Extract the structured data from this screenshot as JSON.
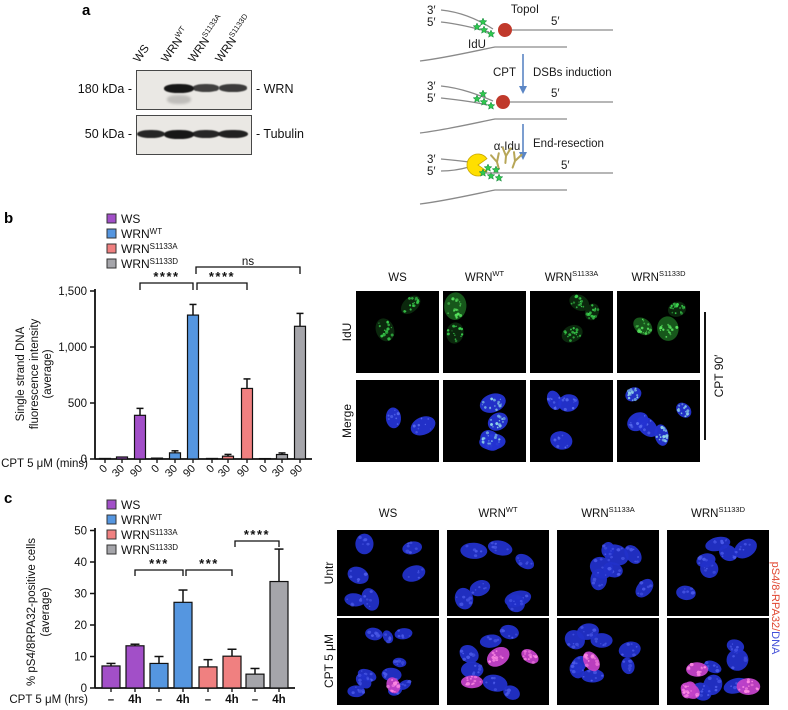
{
  "panels": {
    "a": {
      "label": "a",
      "blot": {
        "lane_labels": [
          {
            "base": "WS",
            "sup": ""
          },
          {
            "base": "WRN",
            "sup": "WT"
          },
          {
            "base": "WRN",
            "sup": "S1133A"
          },
          {
            "base": "WRN",
            "sup": "S1133D"
          }
        ],
        "rows": [
          {
            "marker": "180 kDa -",
            "protein": "- WRN",
            "bands": [
              0,
              1,
              0.6,
              0.65
            ]
          },
          {
            "marker": "50 kDa -",
            "protein": "- Tubulin",
            "bands": [
              0.85,
              1,
              0.85,
              0.9
            ]
          }
        ]
      },
      "schematic": {
        "p3": "3′",
        "p5": "5′",
        "topoI": "TopoI",
        "idu": "IdU",
        "cpt": "CPT",
        "dsbs": "DSBs induction",
        "end_resection": "End-resection",
        "alpha_idu": "α-Idu",
        "colors": {
          "topo": "#c0392b",
          "star": "#2fc84e",
          "pacman": "#ffdf00",
          "antibody": "#b7a657",
          "arrow": "#5b86c5"
        }
      }
    },
    "b": {
      "label": "b",
      "images": {
        "columns": [
          {
            "base": "WS",
            "sup": ""
          },
          {
            "base": "WRN",
            "sup": "WT"
          },
          {
            "base": "WRN",
            "sup": "S1133A"
          },
          {
            "base": "WRN",
            "sup": "S1133D"
          }
        ],
        "rows": [
          {
            "label": "IdU",
            "cells": [
              {
                "seed": 3,
                "scale": 1,
                "nuclei": [
                  {
                    "style": "green",
                    "count": 2
                  }
                ]
              },
              {
                "seed": 7,
                "scale": 1,
                "nuclei": [
                  {
                    "style": "green_bright",
                    "count": 1
                  },
                  {
                    "style": "green",
                    "count": 1
                  }
                ]
              },
              {
                "seed": 11,
                "scale": 0.9,
                "nuclei": [
                  {
                    "style": "green",
                    "count": 3
                  }
                ]
              },
              {
                "seed": 15,
                "scale": 0.95,
                "nuclei": [
                  {
                    "style": "green_bright",
                    "count": 2
                  },
                  {
                    "style": "green",
                    "count": 1
                  }
                ]
              }
            ]
          },
          {
            "label": "Merge",
            "cells": [
              {
                "seed": 21,
                "scale": 1,
                "nuclei": [
                  {
                    "style": "merge_blue",
                    "count": 2
                  }
                ]
              },
              {
                "seed": 25,
                "scale": 0.95,
                "nuclei": [
                  {
                    "style": "merge_cyan",
                    "count": 4
                  }
                ]
              },
              {
                "seed": 29,
                "scale": 0.95,
                "nuclei": [
                  {
                    "style": "merge_blue",
                    "count": 3
                  }
                ]
              },
              {
                "seed": 33,
                "scale": 0.9,
                "nuclei": [
                  {
                    "style": "merge_cyan",
                    "count": 3
                  },
                  {
                    "style": "merge_blue",
                    "count": 2
                  }
                ]
              }
            ]
          }
        ],
        "side_label": "CPT 90′"
      }
    },
    "c": {
      "label": "c",
      "images": {
        "columns": [
          {
            "base": "WS",
            "sup": ""
          },
          {
            "base": "WRN",
            "sup": "WT"
          },
          {
            "base": "WRN",
            "sup": "S1133A"
          },
          {
            "base": "WRN",
            "sup": "S1133D"
          }
        ],
        "rows": [
          {
            "label": "Untr",
            "cells": [
              {
                "seed": 41,
                "scale": 0.8,
                "nuclei": [
                  {
                    "style": "blue",
                    "count": 6
                  }
                ]
              },
              {
                "seed": 45,
                "scale": 0.8,
                "nuclei": [
                  {
                    "style": "blue",
                    "count": 7
                  }
                ]
              },
              {
                "seed": 49,
                "scale": 0.8,
                "nuclei": [
                  {
                    "style": "blue",
                    "count": 7
                  }
                ]
              },
              {
                "seed": 53,
                "scale": 0.85,
                "nuclei": [
                  {
                    "style": "blue",
                    "count": 6
                  }
                ]
              }
            ]
          },
          {
            "label": "CPT 5 μM",
            "cells": [
              {
                "seed": 61,
                "scale": 0.6,
                "nuclei": [
                  {
                    "style": "blue",
                    "count": 10
                  },
                  {
                    "style": "magenta",
                    "count": 1
                  }
                ]
              },
              {
                "seed": 65,
                "scale": 0.75,
                "nuclei": [
                  {
                    "style": "blue",
                    "count": 6
                  },
                  {
                    "style": "magenta",
                    "count": 3
                  }
                ]
              },
              {
                "seed": 69,
                "scale": 0.7,
                "nuclei": [
                  {
                    "style": "blue",
                    "count": 8
                  },
                  {
                    "style": "magenta",
                    "count": 1
                  }
                ]
              },
              {
                "seed": 73,
                "scale": 0.75,
                "nuclei": [
                  {
                    "style": "blue",
                    "count": 6
                  },
                  {
                    "style": "magenta",
                    "count": 4
                  }
                ]
              }
            ]
          }
        ],
        "side_label_parts": [
          {
            "text": "pS4/8-RPA32/",
            "color": "#e0452f"
          },
          {
            "text": "DNA",
            "color": "#4450d8"
          }
        ]
      }
    }
  },
  "chart_data": [
    {
      "id": "panel_b",
      "type": "bar",
      "title": "",
      "ylabel_lines": [
        "Single strand DNA",
        "fluorescence intensity",
        "(average)"
      ],
      "xlabel": "CPT 5 μM (mins)",
      "ylim": [
        0,
        1500
      ],
      "yticks": [
        {
          "v": 0,
          "label": "0"
        },
        {
          "v": 500,
          "label": "500"
        },
        {
          "v": 1000,
          "label": "1,000"
        },
        {
          "v": 1500,
          "label": "1,500"
        }
      ],
      "categories": [
        "0",
        "30",
        "90"
      ],
      "legend": [
        {
          "base": "WS",
          "sup": "",
          "color": "#a24fc8"
        },
        {
          "base": "WRN",
          "sup": "WT",
          "color": "#5596e0"
        },
        {
          "base": "WRN",
          "sup": "S1133A",
          "color": "#f08080"
        },
        {
          "base": "WRN",
          "sup": "S1133D",
          "color": "#a5a5aa"
        }
      ],
      "series": [
        {
          "name": "WS",
          "color": "#a24fc8",
          "values": [
            5,
            18,
            390
          ],
          "errors": [
            3,
            6,
            62
          ]
        },
        {
          "name": "WRN WT",
          "color": "#5596e0",
          "values": [
            8,
            55,
            1285
          ],
          "errors": [
            3,
            18,
            95
          ]
        },
        {
          "name": "WRN S1133A",
          "color": "#f08080",
          "values": [
            5,
            25,
            630
          ],
          "errors": [
            3,
            16,
            85
          ]
        },
        {
          "name": "WRN S1133D",
          "color": "#a5a5aa",
          "values": [
            4,
            40,
            1185
          ],
          "errors": [
            3,
            14,
            115
          ]
        }
      ],
      "significance": [
        {
          "bars": [
            2,
            5
          ],
          "label": "****"
        },
        {
          "bars": [
            5,
            8
          ],
          "label": "****"
        },
        {
          "bars": [
            5,
            11
          ],
          "label": "ns"
        }
      ]
    },
    {
      "id": "panel_c",
      "type": "bar",
      "title": "",
      "ylabel_lines": [
        "% pS4/8RPA32-positive cells",
        "(average)"
      ],
      "xlabel": "CPT 5 μM (hrs)",
      "ylim": [
        0,
        50
      ],
      "yticks": [
        {
          "v": 0,
          "label": "0"
        },
        {
          "v": 10,
          "label": "10"
        },
        {
          "v": 20,
          "label": "20"
        },
        {
          "v": 30,
          "label": "30"
        },
        {
          "v": 40,
          "label": "40"
        },
        {
          "v": 50,
          "label": "50"
        }
      ],
      "categories": [
        "–",
        "4h"
      ],
      "legend": [
        {
          "base": "WS",
          "sup": "",
          "color": "#a24fc8"
        },
        {
          "base": "WRN",
          "sup": "WT",
          "color": "#5596e0"
        },
        {
          "base": "WRN",
          "sup": "S1133A",
          "color": "#f08080"
        },
        {
          "base": "WRN",
          "sup": "S1133D",
          "color": "#a5a5aa"
        }
      ],
      "series": [
        {
          "name": "WS",
          "color": "#a24fc8",
          "values": [
            7,
            13.4
          ],
          "errors": [
            0.8,
            0.5
          ]
        },
        {
          "name": "WRN WT",
          "color": "#5596e0",
          "values": [
            7.8,
            27.2
          ],
          "errors": [
            2.2,
            3.9
          ]
        },
        {
          "name": "WRN S1133A",
          "color": "#f08080",
          "values": [
            6.7,
            10.1
          ],
          "errors": [
            2.3,
            2.2
          ]
        },
        {
          "name": "WRN S1133D",
          "color": "#a5a5aa",
          "values": [
            4.4,
            33.8
          ],
          "errors": [
            1.8,
            10.3
          ]
        }
      ],
      "significance": [
        {
          "bars": [
            1,
            3
          ],
          "label": "***"
        },
        {
          "bars": [
            3,
            5
          ],
          "label": "***"
        },
        {
          "bars": [
            5,
            7
          ],
          "label": "****"
        }
      ]
    }
  ]
}
